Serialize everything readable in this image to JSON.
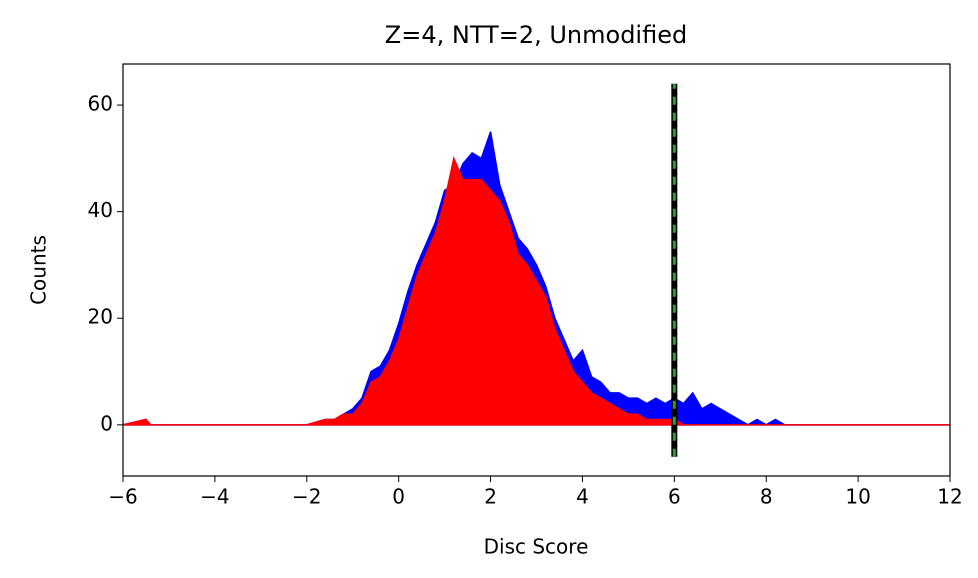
{
  "chart_data": {
    "type": "area",
    "title": "Z=4, NTT=2, Unmodified",
    "x_label": "Disc Score",
    "y_label": "Counts",
    "x": [
      -6,
      -5.5,
      -5.4,
      -2.0,
      -1.6,
      -1.4,
      -1.2,
      -1.0,
      -0.8,
      -0.6,
      -0.4,
      -0.2,
      0.0,
      0.2,
      0.4,
      0.6,
      0.8,
      1.0,
      1.2,
      1.4,
      1.6,
      1.8,
      2.0,
      2.2,
      2.4,
      2.6,
      2.8,
      3.0,
      3.2,
      3.4,
      3.6,
      3.8,
      4.0,
      4.2,
      4.4,
      4.6,
      4.8,
      5.0,
      5.2,
      5.4,
      5.6,
      5.8,
      6.0,
      6.2,
      6.4,
      6.6,
      6.8,
      7.0,
      7.2,
      7.4,
      7.6,
      7.8,
      8.0,
      8.2,
      8.4,
      12
    ],
    "series": [
      {
        "color": "#0000ff",
        "values": [
          0,
          1,
          0,
          0,
          1,
          1,
          2,
          3,
          5,
          10,
          11,
          14,
          19,
          25,
          30,
          34,
          38,
          44,
          45,
          49,
          51,
          50,
          55,
          45,
          40,
          35,
          33,
          30,
          26,
          20,
          16,
          12,
          14,
          9,
          8,
          6,
          6,
          5,
          5,
          4,
          5,
          4,
          5,
          4,
          6,
          3,
          4,
          3,
          2,
          1,
          0,
          1,
          0,
          1,
          0,
          0
        ]
      },
      {
        "color": "#ff0000",
        "values": [
          0,
          1,
          0,
          0,
          1,
          1,
          2,
          2,
          4,
          8,
          9,
          12,
          16,
          22,
          28,
          32,
          36,
          42,
          50,
          46,
          46,
          46,
          44,
          42,
          38,
          32,
          30,
          27,
          24,
          18,
          14,
          10,
          8,
          6,
          5,
          4,
          3,
          2,
          2,
          1,
          1,
          1,
          1,
          0,
          0,
          0,
          0,
          0,
          0,
          0,
          0,
          0,
          0,
          0,
          0,
          0
        ]
      }
    ],
    "vline": {
      "x": 6,
      "ymin": -6,
      "ymax": 64,
      "color": "#000000",
      "dash_color": "#2ca02c"
    },
    "xlim": [
      -6,
      12
    ],
    "ylim": [
      -9.6,
      67.7
    ],
    "xticks": [
      {
        "value": -6,
        "label": "−6"
      },
      {
        "value": -4,
        "label": "−4"
      },
      {
        "value": -2,
        "label": "−2"
      },
      0,
      2,
      4,
      6,
      8,
      10,
      12
    ],
    "yticks": [
      0,
      20,
      40,
      60
    ]
  }
}
